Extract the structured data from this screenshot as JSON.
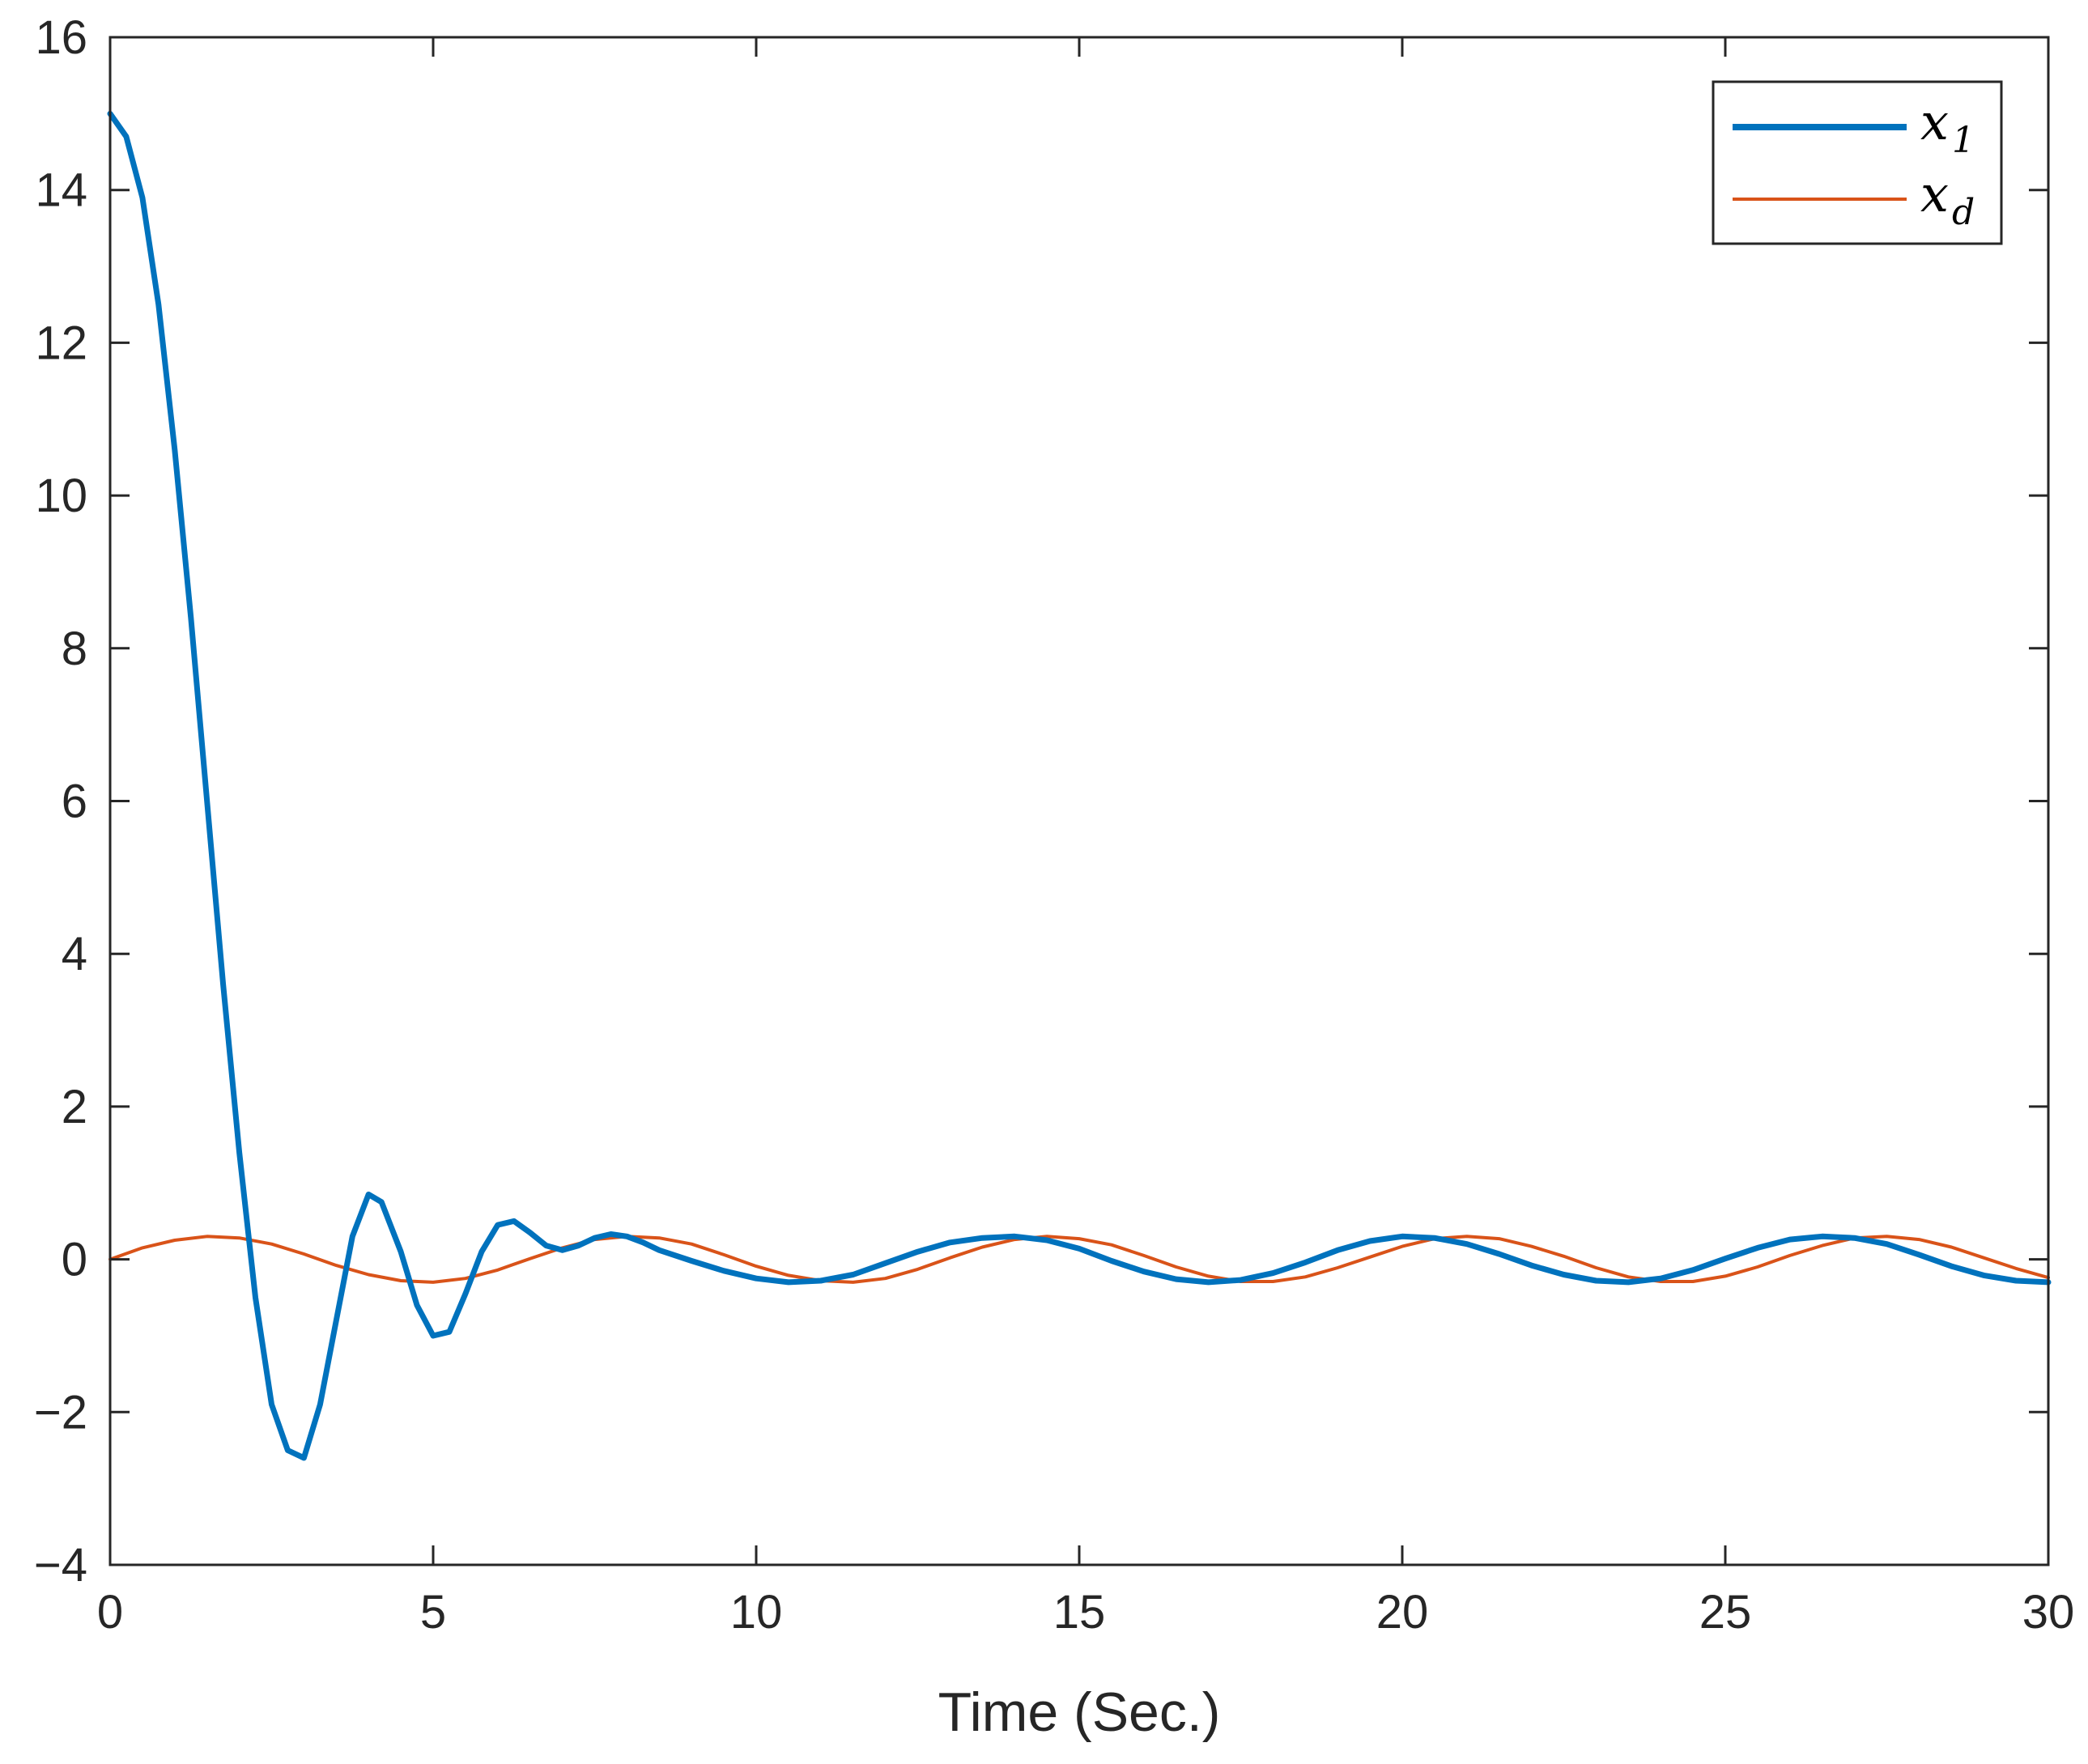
{
  "chart_data": {
    "type": "line",
    "title": "",
    "xlabel": "Time (Sec.)",
    "ylabel": "",
    "xlim": [
      0,
      30
    ],
    "ylim": [
      -4,
      16
    ],
    "xticks": [
      0,
      5,
      10,
      15,
      20,
      25,
      30
    ],
    "yticks": [
      -4,
      -2,
      0,
      2,
      4,
      6,
      8,
      10,
      12,
      14,
      16
    ],
    "xtick_labels": [
      "0",
      "5",
      "10",
      "15",
      "20",
      "25",
      "30"
    ],
    "ytick_labels": [
      "−4",
      "−2",
      "0",
      "2",
      "4",
      "6",
      "8",
      "10",
      "12",
      "14",
      "16"
    ],
    "grid": false,
    "legend_position": "top-right",
    "series": [
      {
        "name": "x1",
        "legend_base": "x",
        "legend_sub": "1",
        "color": "#0072BD",
        "x": [
          0,
          0.25,
          0.5,
          0.75,
          1.0,
          1.25,
          1.5,
          1.75,
          2.0,
          2.25,
          2.5,
          2.75,
          3.0,
          3.25,
          3.5,
          3.75,
          4.0,
          4.2,
          4.5,
          4.75,
          5.0,
          5.25,
          5.5,
          5.75,
          6.0,
          6.25,
          6.5,
          6.75,
          7.0,
          7.25,
          7.5,
          7.75,
          8.0,
          8.25,
          8.5,
          9.0,
          9.5,
          10.0,
          10.5,
          11.0,
          11.5,
          12.0,
          12.5,
          13.0,
          13.5,
          14.0,
          14.5,
          15.0,
          15.5,
          16.0,
          16.5,
          17.0,
          17.5,
          18.0,
          18.5,
          19.0,
          19.5,
          20.0,
          20.5,
          21.0,
          21.5,
          22.0,
          22.5,
          23.0,
          23.5,
          24.0,
          24.5,
          25.0,
          25.5,
          26.0,
          26.5,
          27.0,
          27.5,
          28.0,
          28.5,
          29.0,
          29.5,
          30.0
        ],
        "y": [
          15.0,
          14.7,
          13.9,
          12.5,
          10.6,
          8.4,
          6.0,
          3.6,
          1.4,
          -0.5,
          -1.9,
          -2.5,
          -2.6,
          -1.9,
          -0.8,
          0.3,
          0.85,
          0.75,
          0.1,
          -0.6,
          -1.0,
          -0.95,
          -0.45,
          0.1,
          0.45,
          0.5,
          0.35,
          0.18,
          0.12,
          0.18,
          0.28,
          0.33,
          0.3,
          0.22,
          0.12,
          -0.02,
          -0.15,
          -0.25,
          -0.3,
          -0.28,
          -0.2,
          -0.05,
          0.1,
          0.22,
          0.28,
          0.3,
          0.25,
          0.14,
          -0.02,
          -0.16,
          -0.26,
          -0.3,
          -0.27,
          -0.18,
          -0.04,
          0.12,
          0.24,
          0.3,
          0.28,
          0.2,
          0.07,
          -0.08,
          -0.2,
          -0.28,
          -0.3,
          -0.25,
          -0.14,
          0.01,
          0.15,
          0.26,
          0.3,
          0.28,
          0.2,
          0.06,
          -0.09,
          -0.21,
          -0.28,
          -0.3
        ]
      },
      {
        "name": "xd",
        "legend_base": "x",
        "legend_sub": "d",
        "color": "#D95319",
        "x": [
          0,
          0.5,
          1.0,
          1.5,
          2.0,
          2.5,
          3.0,
          3.5,
          4.0,
          4.5,
          5.0,
          5.5,
          6.0,
          6.5,
          7.0,
          7.5,
          8.0,
          8.5,
          9.0,
          9.5,
          10.0,
          10.5,
          11.0,
          11.5,
          12.0,
          12.5,
          13.0,
          13.5,
          14.0,
          14.5,
          15.0,
          15.5,
          16.0,
          16.5,
          17.0,
          17.5,
          18.0,
          18.5,
          19.0,
          19.5,
          20.0,
          20.5,
          21.0,
          21.5,
          22.0,
          22.5,
          23.0,
          23.5,
          24.0,
          24.5,
          25.0,
          25.5,
          26.0,
          26.5,
          27.0,
          27.5,
          28.0,
          28.5,
          29.0,
          29.5,
          30.0
        ],
        "y": [
          0.0,
          0.15,
          0.25,
          0.3,
          0.28,
          0.2,
          0.07,
          -0.08,
          -0.2,
          -0.28,
          -0.3,
          -0.25,
          -0.14,
          0.01,
          0.15,
          0.26,
          0.3,
          0.28,
          0.2,
          0.06,
          -0.09,
          -0.21,
          -0.28,
          -0.3,
          -0.25,
          -0.13,
          0.02,
          0.16,
          0.26,
          0.3,
          0.27,
          0.19,
          0.05,
          -0.1,
          -0.22,
          -0.29,
          -0.29,
          -0.23,
          -0.11,
          0.03,
          0.17,
          0.27,
          0.3,
          0.27,
          0.17,
          0.04,
          -0.11,
          -0.23,
          -0.29,
          -0.29,
          -0.22,
          -0.1,
          0.05,
          0.18,
          0.28,
          0.3,
          0.26,
          0.16,
          0.02,
          -0.12,
          -0.24
        ]
      }
    ]
  }
}
